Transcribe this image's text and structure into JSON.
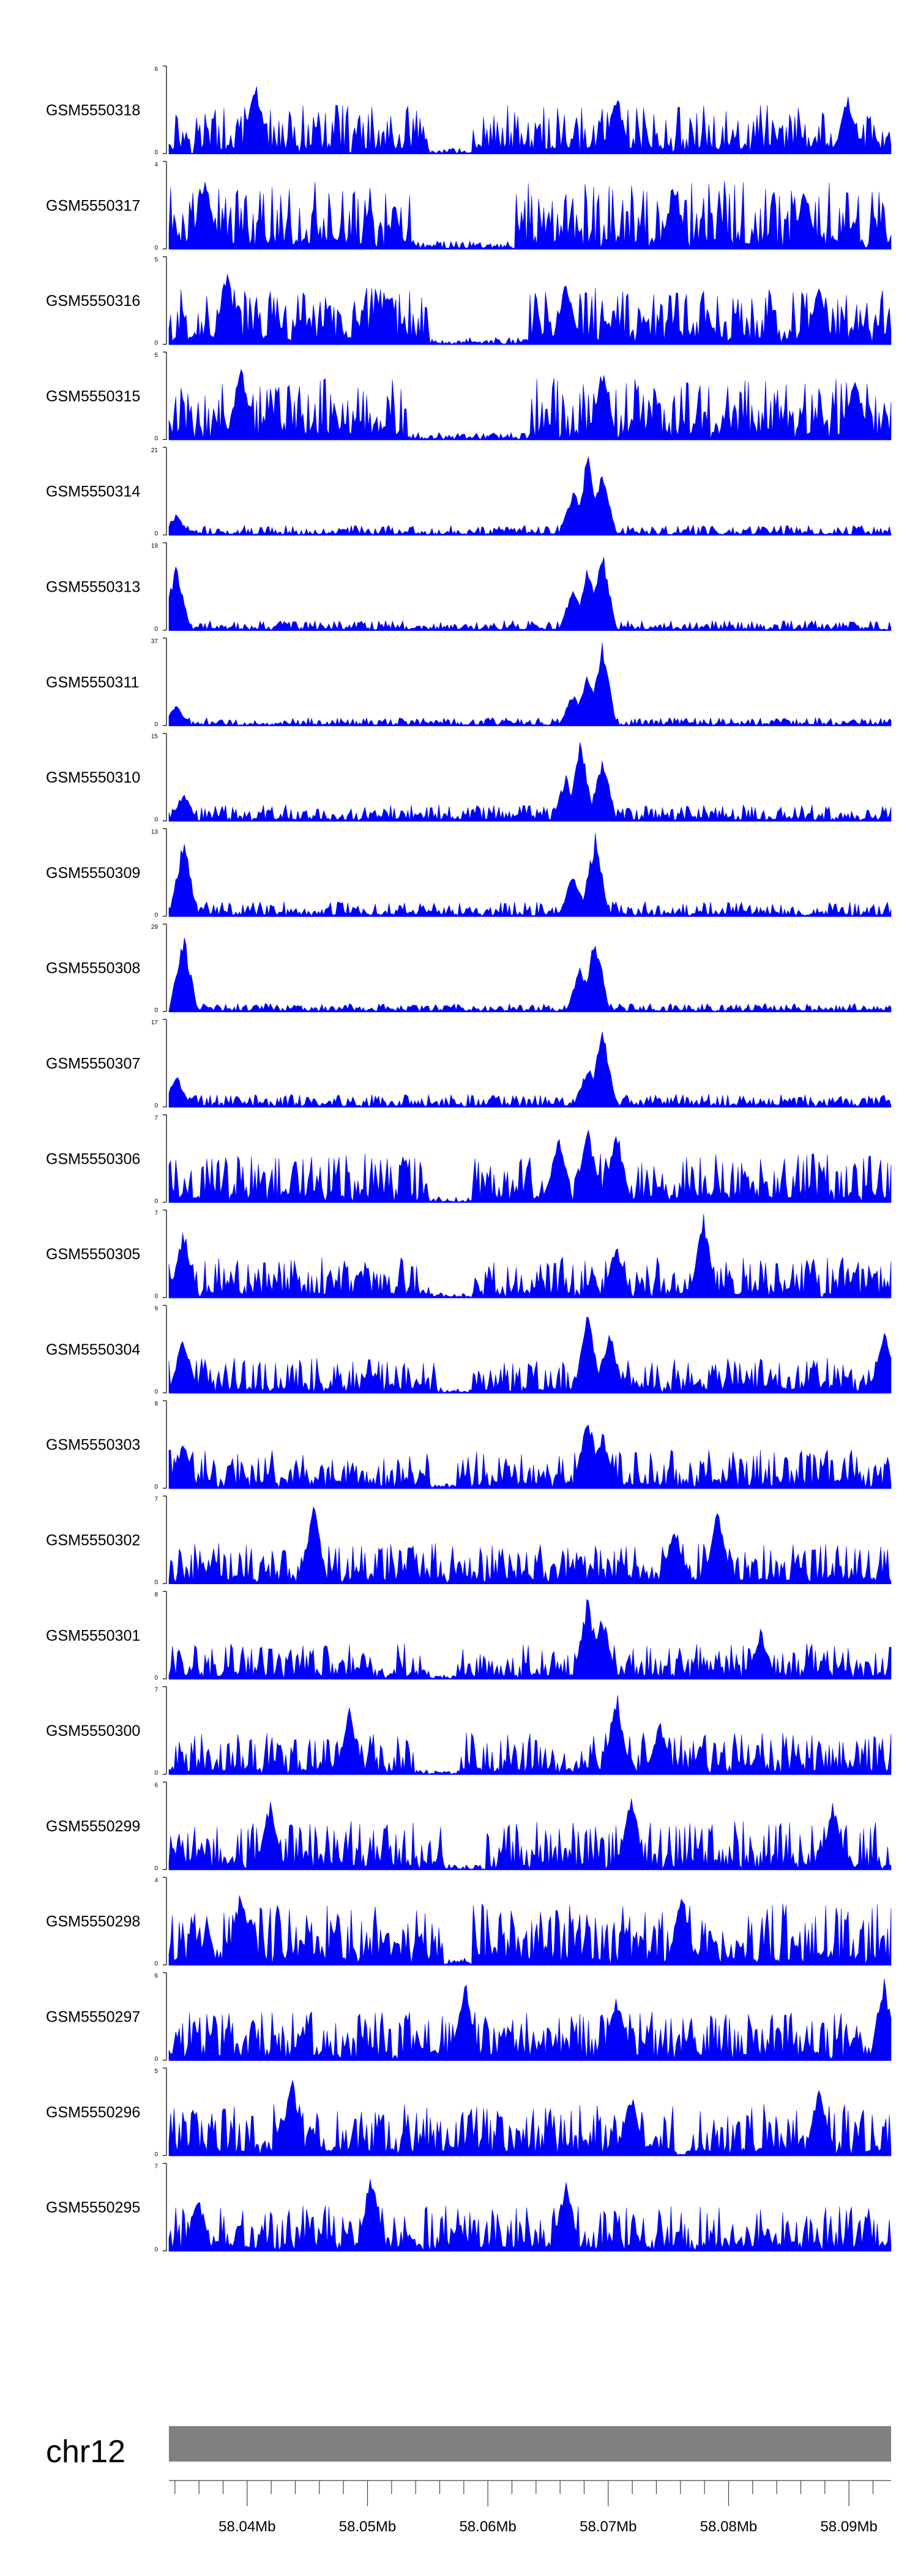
{
  "chart_data": {
    "type": "area",
    "title": "",
    "xlabel": "",
    "ylabel": "",
    "color": "#0000ff",
    "region": {
      "chrom": "chr12",
      "start_mb": 58.0335,
      "end_mb": 58.0935
    },
    "ideogram_color": "#808080",
    "x_ticks": [
      "58.04Mb",
      "58.05Mb",
      "58.06Mb",
      "58.07Mb",
      "58.08Mb",
      "58.09Mb"
    ],
    "x_tick_values_mb": [
      58.04,
      58.05,
      58.06,
      58.07,
      58.08,
      58.09
    ],
    "series": [
      {
        "name": "GSM5550318",
        "ymin": 0,
        "ymax": 6,
        "mean": 0.3,
        "peaks": [
          [
            0.12,
            0.85
          ],
          [
            0.62,
            0.72
          ],
          [
            0.94,
            0.7
          ]
        ],
        "gaps": [
          [
            0.36,
            0.42
          ]
        ]
      },
      {
        "name": "GSM5550317",
        "ymin": 0,
        "ymax": 4,
        "mean": 0.42,
        "peaks": [
          [
            0.05,
            0.9
          ],
          [
            0.7,
            0.8
          ],
          [
            0.88,
            0.75
          ]
        ],
        "gaps": [
          [
            0.34,
            0.48
          ]
        ]
      },
      {
        "name": "GSM5550316",
        "ymin": 0,
        "ymax": 5,
        "mean": 0.35,
        "peaks": [
          [
            0.08,
            0.9
          ],
          [
            0.55,
            0.75
          ],
          [
            0.9,
            0.7
          ]
        ],
        "gaps": [
          [
            0.36,
            0.5
          ]
        ]
      },
      {
        "name": "GSM5550315",
        "ymin": 0,
        "ymax": 5,
        "mean": 0.38,
        "peaks": [
          [
            0.1,
            0.95
          ],
          [
            0.6,
            0.85
          ],
          [
            0.95,
            0.8
          ]
        ],
        "gaps": [
          [
            0.33,
            0.5
          ]
        ]
      },
      {
        "name": "GSM5550314",
        "ymin": 0,
        "ymax": 21,
        "mean": 0.06,
        "peaks": [
          [
            0.58,
            0.95
          ],
          [
            0.6,
            0.8
          ],
          [
            0.56,
            0.55
          ],
          [
            0.01,
            0.25
          ]
        ],
        "gaps": []
      },
      {
        "name": "GSM5550313",
        "ymin": 0,
        "ymax": 19,
        "mean": 0.06,
        "peaks": [
          [
            0.6,
            0.98
          ],
          [
            0.58,
            0.8
          ],
          [
            0.56,
            0.55
          ],
          [
            0.01,
            0.8
          ]
        ],
        "gaps": []
      },
      {
        "name": "GSM5550311",
        "ymin": 0,
        "ymax": 37,
        "mean": 0.05,
        "peaks": [
          [
            0.6,
            0.95
          ],
          [
            0.58,
            0.65
          ],
          [
            0.56,
            0.4
          ],
          [
            0.01,
            0.25
          ]
        ],
        "gaps": []
      },
      {
        "name": "GSM5550310",
        "ymin": 0,
        "ymax": 15,
        "mean": 0.1,
        "peaks": [
          [
            0.57,
            0.95
          ],
          [
            0.6,
            0.8
          ],
          [
            0.55,
            0.55
          ],
          [
            0.02,
            0.35
          ]
        ],
        "gaps": []
      },
      {
        "name": "GSM5550309",
        "ymin": 0,
        "ymax": 13,
        "mean": 0.09,
        "peaks": [
          [
            0.59,
            0.98
          ],
          [
            0.56,
            0.55
          ],
          [
            0.02,
            0.95
          ]
        ],
        "gaps": []
      },
      {
        "name": "GSM5550308",
        "ymin": 0,
        "ymax": 29,
        "mean": 0.05,
        "peaks": [
          [
            0.59,
            0.95
          ],
          [
            0.57,
            0.55
          ],
          [
            0.02,
            0.95
          ]
        ],
        "gaps": []
      },
      {
        "name": "GSM5550307",
        "ymin": 0,
        "ymax": 17,
        "mean": 0.08,
        "peaks": [
          [
            0.6,
            0.98
          ],
          [
            0.58,
            0.5
          ],
          [
            0.01,
            0.4
          ]
        ],
        "gaps": []
      },
      {
        "name": "GSM5550306",
        "ymin": 0,
        "ymax": 7,
        "mean": 0.3,
        "peaks": [
          [
            0.58,
            0.95
          ],
          [
            0.62,
            0.9
          ],
          [
            0.54,
            0.8
          ]
        ],
        "gaps": [
          [
            0.36,
            0.42
          ]
        ]
      },
      {
        "name": "GSM5550305",
        "ymin": 0,
        "ymax": 7,
        "mean": 0.25,
        "peaks": [
          [
            0.74,
            0.98
          ],
          [
            0.62,
            0.65
          ],
          [
            0.02,
            0.85
          ]
        ],
        "gaps": [
          [
            0.36,
            0.42
          ]
        ]
      },
      {
        "name": "GSM5550304",
        "ymin": 0,
        "ymax": 9,
        "mean": 0.22,
        "peaks": [
          [
            0.58,
            0.95
          ],
          [
            0.61,
            0.8
          ],
          [
            0.02,
            0.7
          ],
          [
            0.99,
            0.8
          ]
        ],
        "gaps": [
          [
            0.38,
            0.42
          ]
        ]
      },
      {
        "name": "GSM5550303",
        "ymin": 0,
        "ymax": 8,
        "mean": 0.24,
        "peaks": [
          [
            0.58,
            0.95
          ],
          [
            0.6,
            0.7
          ],
          [
            0.02,
            0.6
          ]
        ],
        "gaps": [
          [
            0.36,
            0.4
          ]
        ]
      },
      {
        "name": "GSM5550302",
        "ymin": 0,
        "ymax": 7,
        "mean": 0.25,
        "peaks": [
          [
            0.2,
            0.95
          ],
          [
            0.76,
            0.9
          ],
          [
            0.7,
            0.75
          ]
        ],
        "gaps": []
      },
      {
        "name": "GSM5550301",
        "ymin": 0,
        "ymax": 8,
        "mean": 0.22,
        "peaks": [
          [
            0.58,
            0.98
          ],
          [
            0.6,
            0.8
          ],
          [
            0.82,
            0.6
          ]
        ],
        "gaps": [
          [
            0.36,
            0.4
          ]
        ]
      },
      {
        "name": "GSM5550300",
        "ymin": 0,
        "ymax": 7,
        "mean": 0.26,
        "peaks": [
          [
            0.62,
            0.98
          ],
          [
            0.25,
            0.8
          ],
          [
            0.68,
            0.65
          ]
        ],
        "gaps": [
          [
            0.34,
            0.4
          ]
        ]
      },
      {
        "name": "GSM5550299",
        "ymin": 0,
        "ymax": 6,
        "mean": 0.3,
        "peaks": [
          [
            0.64,
            0.95
          ],
          [
            0.14,
            0.85
          ],
          [
            0.92,
            0.8
          ]
        ],
        "gaps": [
          [
            0.38,
            0.44
          ]
        ]
      },
      {
        "name": "GSM5550298",
        "ymin": 0,
        "ymax": 4,
        "mean": 0.38,
        "peaks": [
          [
            0.1,
            0.95
          ],
          [
            0.71,
            0.9
          ],
          [
            0.4,
            0.3
          ]
        ],
        "gaps": [
          [
            0.38,
            0.42
          ]
        ]
      },
      {
        "name": "GSM5550297",
        "ymin": 0,
        "ymax": 6,
        "mean": 0.3,
        "peaks": [
          [
            0.41,
            0.95
          ],
          [
            0.99,
            0.98
          ],
          [
            0.62,
            0.8
          ]
        ],
        "gaps": []
      },
      {
        "name": "GSM5550296",
        "ymin": 0,
        "ymax": 5,
        "mean": 0.32,
        "peaks": [
          [
            0.17,
            0.95
          ],
          [
            0.9,
            0.8
          ],
          [
            0.64,
            0.75
          ]
        ],
        "gaps": [
          [
            0.7,
            0.72
          ]
        ]
      },
      {
        "name": "GSM5550295",
        "ymin": 0,
        "ymax": 7,
        "mean": 0.28,
        "peaks": [
          [
            0.28,
            0.98
          ],
          [
            0.55,
            0.85
          ],
          [
            0.04,
            0.7
          ]
        ],
        "gaps": []
      }
    ]
  }
}
